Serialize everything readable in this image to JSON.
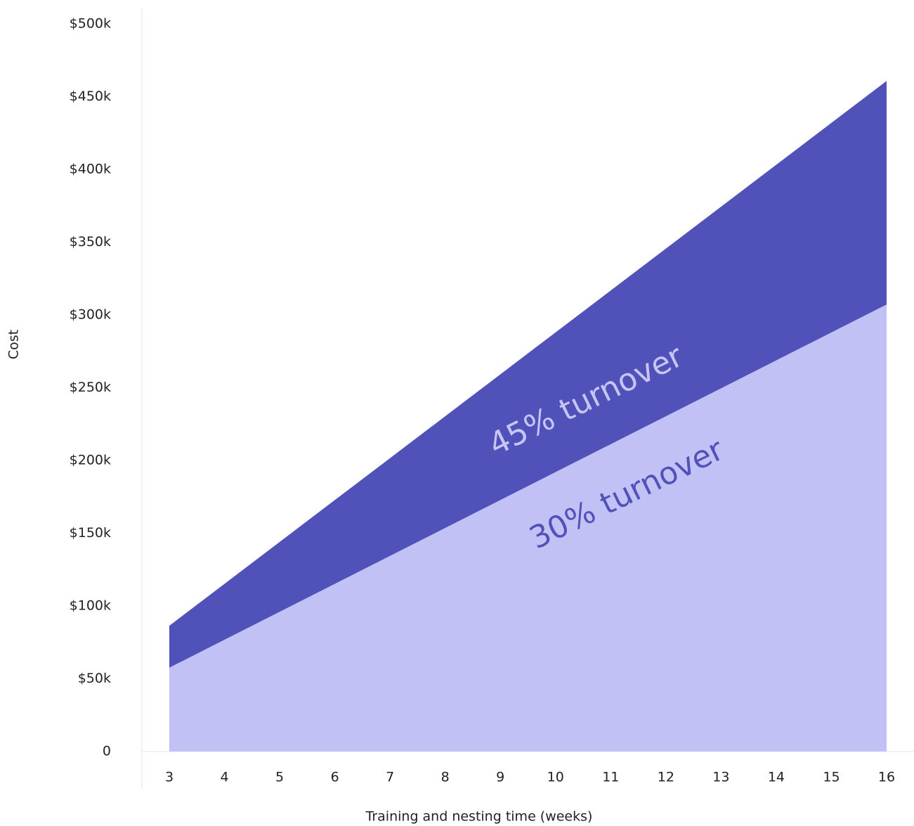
{
  "chart_data": {
    "type": "area",
    "x_label": "Training and nesting time (weeks)",
    "y_label": "Cost",
    "x": [
      3,
      4,
      5,
      6,
      7,
      8,
      9,
      10,
      11,
      12,
      13,
      14,
      15,
      16
    ],
    "series": [
      {
        "name": "45% turnover",
        "color": "#5152b9",
        "label_color": "#c6c5f4",
        "values": [
          86400,
          115200,
          144000,
          172800,
          201600,
          230400,
          259200,
          288000,
          316800,
          345600,
          374400,
          403200,
          432000,
          460800
        ]
      },
      {
        "name": "30% turnover",
        "color": "#c2c1f5",
        "label_color": "#5152b9",
        "values": [
          57600,
          76800,
          96000,
          115200,
          134400,
          153600,
          172800,
          192000,
          211200,
          230400,
          249600,
          268800,
          288000,
          307200
        ]
      }
    ],
    "ylim": [
      0,
      500000
    ],
    "yticks": [
      0,
      {
        "value": 50000,
        "label": "$50k"
      },
      {
        "value": 100000,
        "label": "$100k"
      },
      {
        "value": 150000,
        "label": "$150k"
      },
      {
        "value": 200000,
        "label": "$200k"
      },
      {
        "value": 250000,
        "label": "$250k"
      },
      {
        "value": 300000,
        "label": "$300k"
      },
      {
        "value": 350000,
        "label": "$350k"
      },
      {
        "value": 400000,
        "label": "$400k"
      },
      {
        "value": 450000,
        "label": "$450k"
      },
      {
        "value": 500000,
        "label": "$500k"
      }
    ],
    "grid": false
  }
}
